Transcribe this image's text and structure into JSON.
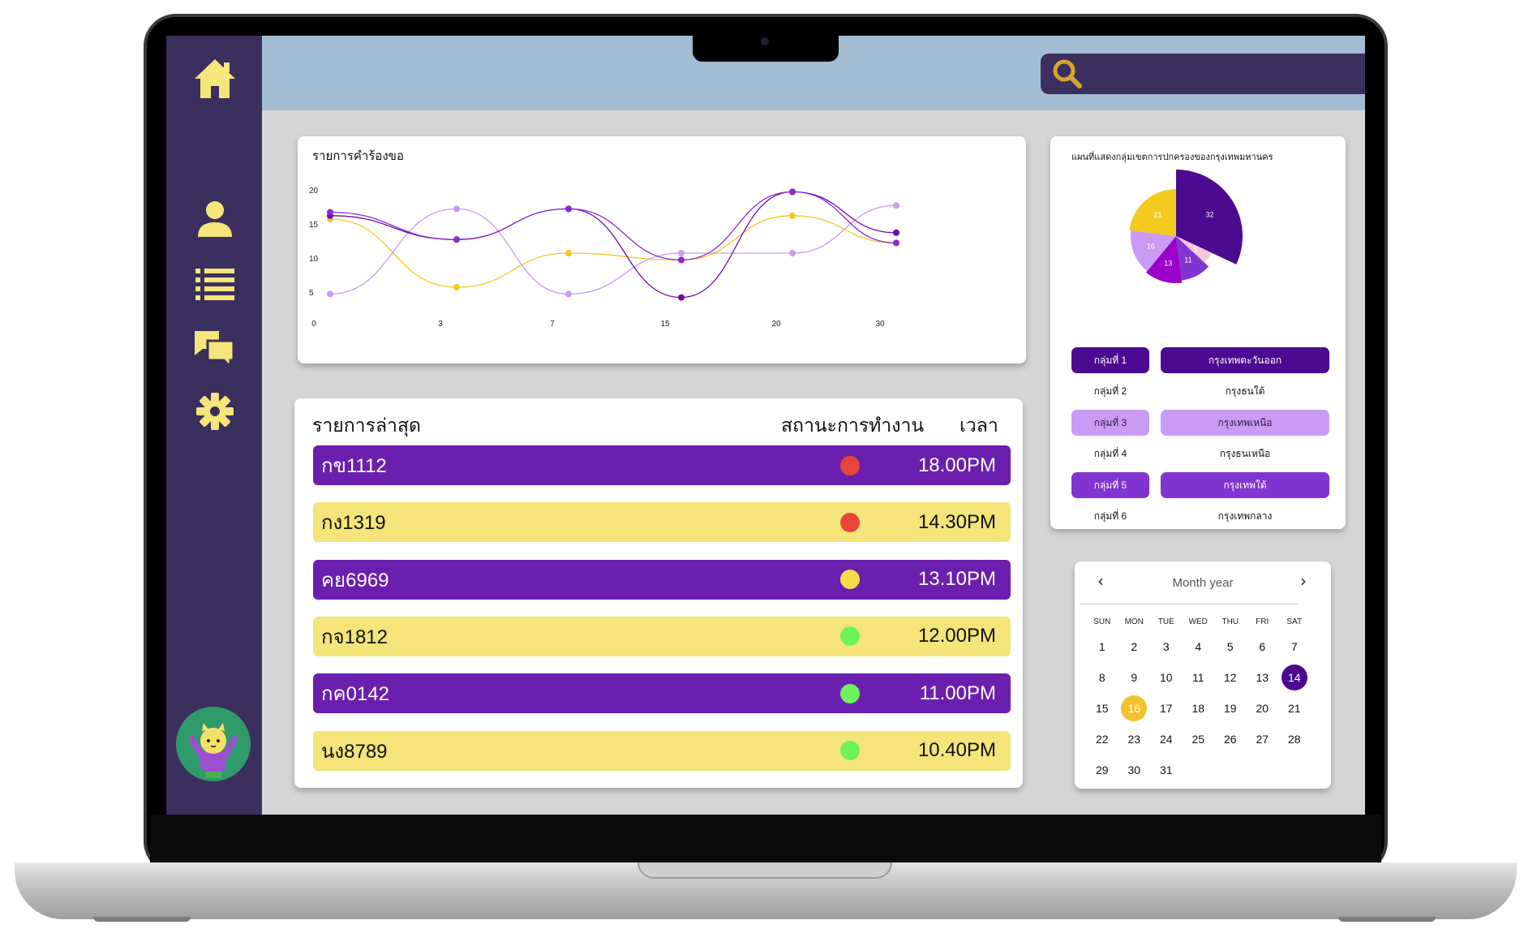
{
  "sidebar": {
    "items": [
      {
        "name": "home-icon"
      },
      {
        "name": "user-icon"
      },
      {
        "name": "list-icon"
      },
      {
        "name": "chat-icon"
      },
      {
        "name": "gear-icon"
      }
    ],
    "icon_color": "#f6e57a"
  },
  "search": {
    "placeholder": "",
    "icon": "search-icon",
    "icon_color": "#d4a72c"
  },
  "line_chart": {
    "title": "รายการคำร้องขอ",
    "y_ticks": [
      "20",
      "15",
      "10",
      "5",
      "0"
    ],
    "x_ticks": [
      "3",
      "7",
      "15",
      "20",
      "30"
    ]
  },
  "chart_data": {
    "type": "line",
    "x": [
      0,
      3,
      7,
      15,
      20,
      30
    ],
    "x_tick_labels": [
      "0",
      "3",
      "7",
      "15",
      "20",
      "30"
    ],
    "y_ticks": [
      0,
      5,
      10,
      15,
      20
    ],
    "series": [
      {
        "color": "#f2c91f",
        "values": [
          15,
          5,
          10,
          9,
          15.5,
          11.5
        ]
      },
      {
        "color": "#c79bf0",
        "values": [
          4,
          16.5,
          4,
          10,
          10,
          17
        ]
      },
      {
        "color": "#6a0dad",
        "values": [
          15.5,
          12,
          16.5,
          3.5,
          19,
          13
        ]
      },
      {
        "color": "#8a2ad0",
        "values": [
          16,
          12,
          16.5,
          9,
          19,
          11.5
        ]
      }
    ]
  },
  "latest": {
    "title": "รายการล่าสุด",
    "status_header": "สถานะการทำงาน",
    "time_header": "เวลา",
    "rows": [
      {
        "code": "กข1112",
        "status_color": "#e8463a",
        "time": "18.00PM",
        "style": "purple"
      },
      {
        "code": "กง1319",
        "status_color": "#e8463a",
        "time": "14.30PM",
        "style": "yellow"
      },
      {
        "code": "คย6969",
        "status_color": "#f4dc4a",
        "time": "13.10PM",
        "style": "purple"
      },
      {
        "code": "กจ1812",
        "status_color": "#6ef25c",
        "time": "12.00PM",
        "style": "yellow"
      },
      {
        "code": "กค0142",
        "status_color": "#6ef25c",
        "time": "11.00PM",
        "style": "purple"
      },
      {
        "code": "นง8789",
        "status_color": "#6ef25c",
        "time": "10.40PM",
        "style": "yellow"
      }
    ]
  },
  "pie": {
    "title": "แผนที่แสดงกลุ่มเขตการปกครองของกรุงเทพมหานคร",
    "slices": [
      {
        "label": "32",
        "value": 32,
        "color": "#4b0a8f"
      },
      {
        "label": "5",
        "value": 5,
        "color": "#f8c6dc"
      },
      {
        "label": "11",
        "value": 11,
        "color": "#8234d0"
      },
      {
        "label": "13",
        "value": 13,
        "color": "#9a00c8"
      },
      {
        "label": "16",
        "value": 16,
        "color": "#c99bf4"
      },
      {
        "label": "23",
        "value": 23,
        "color": "#f2c91f"
      }
    ],
    "legend": [
      {
        "group": "กลุ่มที่ 1",
        "area": "กรุงเทพตะวันออก",
        "style": "dark"
      },
      {
        "group": "กลุ่มที่ 2",
        "area": "กรุงธนใต้",
        "style": "plain"
      },
      {
        "group": "กลุ่มที่ 3",
        "area": "กรุงเทพเหนือ",
        "style": "light"
      },
      {
        "group": "กลุ่มที่ 4",
        "area": "กรุงธนเหนือ",
        "style": "plain"
      },
      {
        "group": "กลุ่มที่ 5",
        "area": "กรุงเทพใต้",
        "style": "mid"
      },
      {
        "group": "กลุ่มที่ 6",
        "area": "กรุงเทพกลาง",
        "style": "plain"
      }
    ]
  },
  "calendar": {
    "header": "Month year",
    "prev": "‹",
    "next": "›",
    "dow": [
      "SUN",
      "MON",
      "TUE",
      "WED",
      "THU",
      "FRI",
      "SAT"
    ],
    "days": [
      "1",
      "2",
      "3",
      "4",
      "5",
      "6",
      "7",
      "8",
      "9",
      "10",
      "11",
      "12",
      "13",
      "14",
      "15",
      "16",
      "17",
      "18",
      "19",
      "20",
      "21",
      "22",
      "23",
      "24",
      "25",
      "26",
      "27",
      "28",
      "29",
      "30",
      "31"
    ],
    "selected": "14",
    "today": "16"
  }
}
